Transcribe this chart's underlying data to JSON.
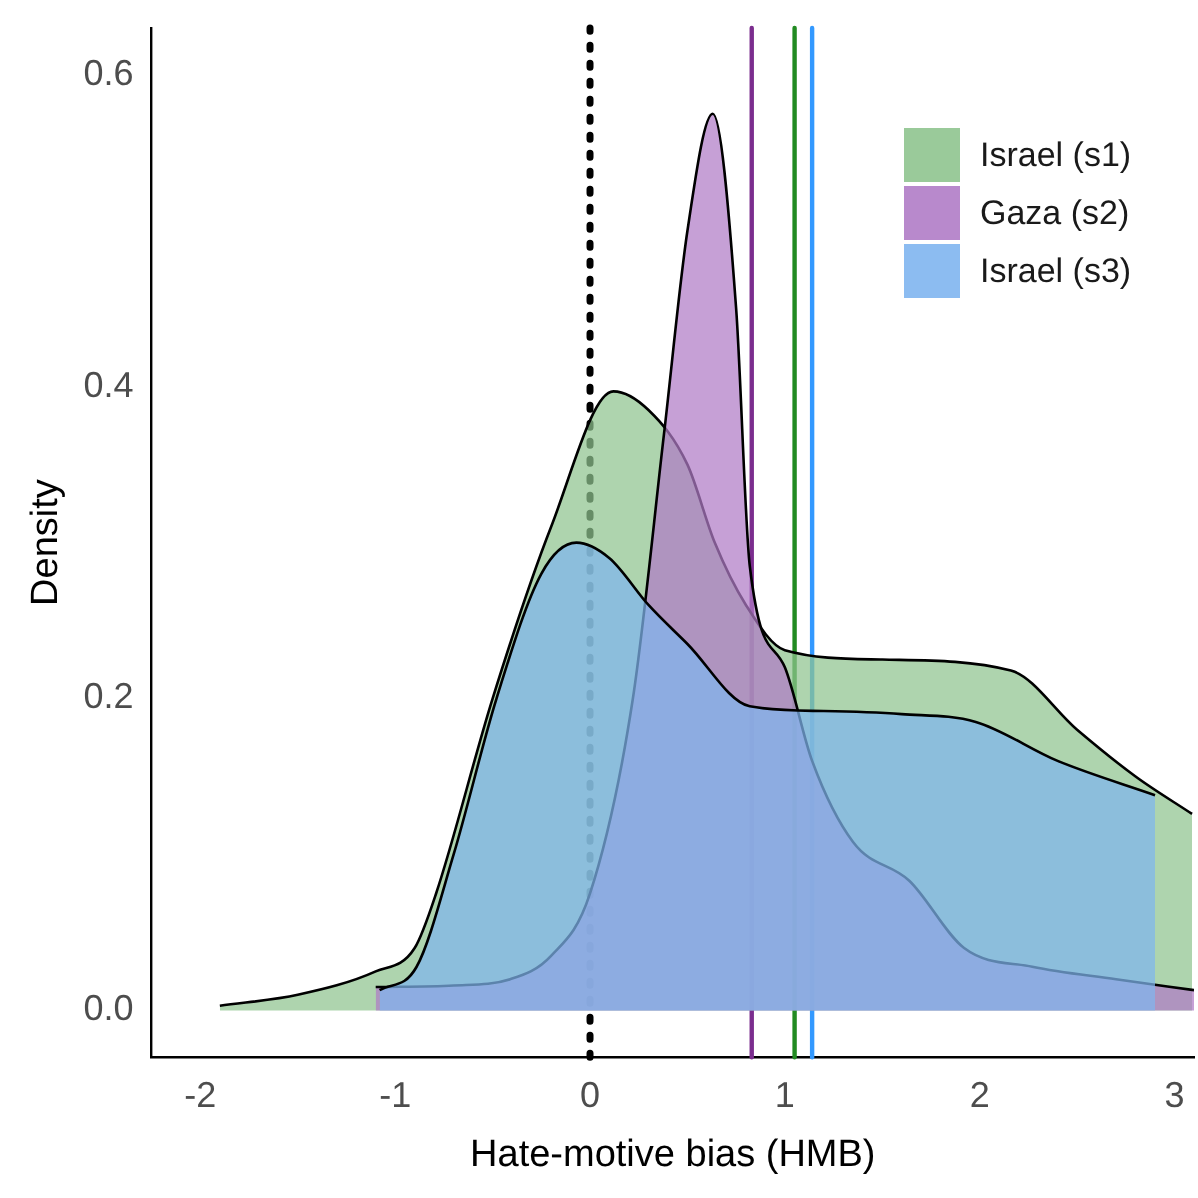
{
  "chart_data": {
    "type": "area",
    "xlabel": "Hate-motive bias (HMB)",
    "ylabel": "Density",
    "xlim": [
      -2.25,
      3.1
    ],
    "ylim": [
      -0.03,
      0.63
    ],
    "xticks": [
      -2,
      -1,
      0,
      1,
      2,
      3
    ],
    "yticks": [
      {
        "value": 0,
        "label": "0.0"
      },
      {
        "value": 0.2,
        "label": "0.2"
      },
      {
        "value": 0.4,
        "label": "0.4"
      },
      {
        "value": 0.6,
        "label": "0.6"
      }
    ],
    "grid": false,
    "legend": "top right",
    "marker": "none",
    "series": [
      {
        "name": "Israel (s1)",
        "color": "#8fc48f",
        "x": [
          -1.9,
          -1.5,
          -1.1,
          -0.9,
          -0.79,
          -0.5,
          -0.2,
          0.12,
          0.3,
          0.5,
          0.64,
          0.8,
          1.0,
          1.5,
          2.16,
          2.5,
          2.8,
          3.09
        ],
        "values": [
          0.003,
          0.01,
          0.025,
          0.04,
          0.075,
          0.2,
          0.31,
          0.397,
          0.385,
          0.35,
          0.3,
          0.26,
          0.231,
          0.225,
          0.218,
          0.18,
          0.15,
          0.126
        ]
      },
      {
        "name": "Gaza (s2)",
        "color": "#b07cc6",
        "x": [
          -1.1,
          -0.7,
          -0.41,
          -0.2,
          0.0,
          0.22,
          0.38,
          0.5,
          0.63,
          0.75,
          0.82,
          1.0,
          1.14,
          1.35,
          1.64,
          1.92,
          2.27,
          2.7,
          3.1
        ],
        "values": [
          0.015,
          0.016,
          0.02,
          0.035,
          0.075,
          0.2,
          0.37,
          0.5,
          0.575,
          0.45,
          0.285,
          0.22,
          0.16,
          0.108,
          0.083,
          0.04,
          0.028,
          0.02,
          0.013
        ]
      },
      {
        "name": "Israel (s3)",
        "color": "#7fb5ef",
        "x": [
          -1.08,
          -0.89,
          -0.7,
          -0.48,
          -0.25,
          -0.07,
          0.1,
          0.3,
          0.5,
          0.82,
          1.2,
          1.6,
          1.98,
          2.4,
          2.9
        ],
        "values": [
          0.013,
          0.028,
          0.1,
          0.2,
          0.28,
          0.3,
          0.29,
          0.26,
          0.235,
          0.195,
          0.192,
          0.19,
          0.185,
          0.16,
          0.138
        ]
      }
    ],
    "ref_lines": [
      {
        "axis": "x",
        "value": 0,
        "color": "#000000",
        "line_style": "dotted"
      },
      {
        "axis": "x",
        "value": 0.83,
        "color": "#7b2d8e",
        "line_style": "solid"
      },
      {
        "axis": "x",
        "value": 1.05,
        "color": "#228b22",
        "line_style": "solid"
      },
      {
        "axis": "x",
        "value": 1.14,
        "color": "#3399ff",
        "line_style": "solid"
      }
    ]
  }
}
